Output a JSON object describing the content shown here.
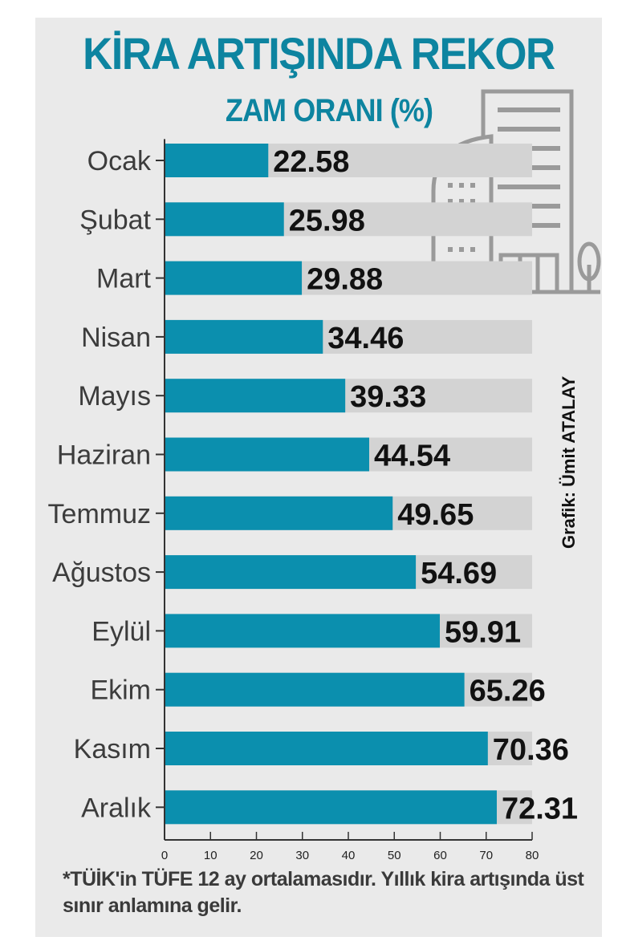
{
  "colors": {
    "accent": "#0d84a0",
    "bar": "#0b8fae",
    "track": "#d3d3d3",
    "panel": "#eaeaea"
  },
  "header": {
    "title": "KİRA ARTIŞINDA REKOR",
    "subtitle": "ZAM ORANI (%)"
  },
  "credit": "Grafik: Ümit ATALAY",
  "footnote": "*TÜİK'in TÜFE 12 ay ortalamasıdır. Yıllık kira artışında üst sınır anlamına gelir.",
  "icons": [
    "building-illustration-icon",
    "tree-icon"
  ],
  "chart_data": {
    "type": "bar",
    "orientation": "horizontal",
    "title": "ZAM ORANI (%)",
    "categories": [
      "Ocak",
      "Şubat",
      "Mart",
      "Nisan",
      "Mayıs",
      "Haziran",
      "Temmuz",
      "Ağustos",
      "Eylül",
      "Ekim",
      "Kasım",
      "Aralık"
    ],
    "values": [
      22.58,
      25.98,
      29.88,
      34.46,
      39.33,
      44.54,
      49.65,
      54.69,
      59.91,
      65.26,
      70.36,
      72.31
    ],
    "value_labels": [
      "22.58",
      "25.98",
      "29.88",
      "34.46",
      "39.33",
      "44.54",
      "49.65",
      "54.69",
      "59.91",
      "65.26",
      "70.36",
      "72.31"
    ],
    "xlim": [
      0,
      80
    ],
    "xticks": [
      0,
      10,
      20,
      30,
      40,
      50,
      60,
      70,
      80
    ],
    "track_max": 80,
    "grid": false,
    "xlabel": "",
    "ylabel": ""
  }
}
